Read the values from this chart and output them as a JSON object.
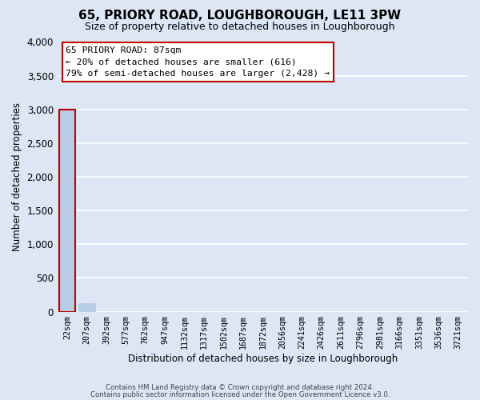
{
  "title": "65, PRIORY ROAD, LOUGHBOROUGH, LE11 3PW",
  "subtitle": "Size of property relative to detached houses in Loughborough",
  "xlabel": "Distribution of detached houses by size in Loughborough",
  "ylabel": "Number of detached properties",
  "bar_labels": [
    "22sqm",
    "207sqm",
    "392sqm",
    "577sqm",
    "762sqm",
    "947sqm",
    "1132sqm",
    "1317sqm",
    "1502sqm",
    "1687sqm",
    "1872sqm",
    "2056sqm",
    "2241sqm",
    "2426sqm",
    "2611sqm",
    "2796sqm",
    "2981sqm",
    "3166sqm",
    "3351sqm",
    "3536sqm",
    "3721sqm"
  ],
  "bar_values": [
    3000,
    130,
    0,
    0,
    0,
    0,
    0,
    0,
    0,
    0,
    0,
    0,
    0,
    0,
    0,
    0,
    0,
    0,
    0,
    0,
    0
  ],
  "bar_color": "#b8cce4",
  "highlight_color": "#c00000",
  "ylim": [
    0,
    4000
  ],
  "yticks": [
    0,
    500,
    1000,
    1500,
    2000,
    2500,
    3000,
    3500,
    4000
  ],
  "annotation_line1": "65 PRIORY ROAD: 87sqm",
  "annotation_line2": "← 20% of detached houses are smaller (616)",
  "annotation_line3": "79% of semi-detached houses are larger (2,428) →",
  "footer_line1": "Contains HM Land Registry data © Crown copyright and database right 2024.",
  "footer_line2": "Contains public sector information licensed under the Open Government Licence v3.0.",
  "bg_color": "#dce6f5",
  "plot_bg_color": "#dce6f5",
  "grid_color": "#ffffff",
  "box_edge_color": "#c00000",
  "box_face_color": "#ffffff"
}
